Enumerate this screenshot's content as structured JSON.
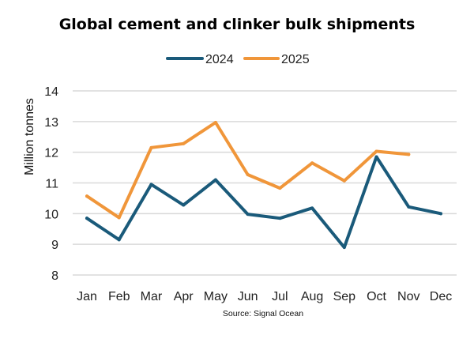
{
  "chart_data": {
    "type": "line",
    "title": "Global cement and clinker bulk shipments",
    "xlabel": "",
    "ylabel": "Million tonnes",
    "source": "Source: Signal Ocean",
    "categories": [
      "Jan",
      "Feb",
      "Mar",
      "Apr",
      "May",
      "Jun",
      "Jul",
      "Aug",
      "Sep",
      "Oct",
      "Nov",
      "Dec"
    ],
    "ylim": [
      8,
      14
    ],
    "yticks": [
      "8",
      "9",
      "10",
      "11",
      "12",
      "13",
      "14"
    ],
    "grid": true,
    "legend_position": "top-center",
    "series": [
      {
        "name": "2024",
        "color": "#1a5a7a",
        "values": [
          9.85,
          9.15,
          10.95,
          10.28,
          11.1,
          9.98,
          9.85,
          10.18,
          8.9,
          11.85,
          10.22,
          10.0
        ]
      },
      {
        "name": "2025",
        "color": "#f0963a",
        "values": [
          10.57,
          9.87,
          12.15,
          12.28,
          12.97,
          11.27,
          10.83,
          11.65,
          11.07,
          12.03,
          11.93,
          null
        ]
      }
    ]
  }
}
